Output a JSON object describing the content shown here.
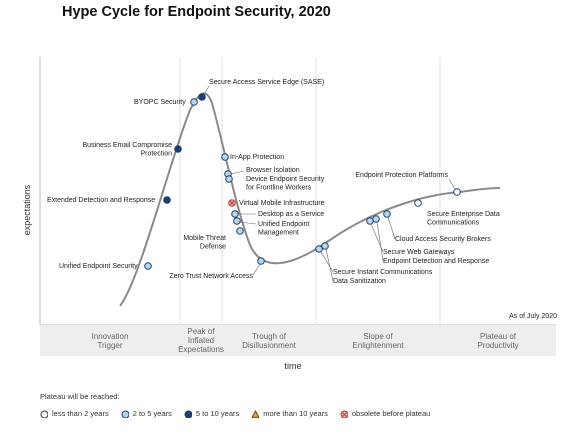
{
  "title": "Hype Cycle for Endpoint Security, 2020",
  "chart_data": {
    "type": "hype-cycle",
    "xlabel": "time",
    "ylabel": "expectations",
    "as_of": "As of July 2020",
    "phases": [
      "Innovation Trigger",
      "Peak of Inflated Expectations",
      "Trough of Disillusionment",
      "Slope of Enlightenment",
      "Plateau of Productivity"
    ],
    "technologies": [
      {
        "name": "Unified Endpoint Security",
        "plateau": "2-5"
      },
      {
        "name": "Extended Detection and Response",
        "plateau": "5-10"
      },
      {
        "name": "Business Email Compromise Protection",
        "plateau": "5-10"
      },
      {
        "name": "BYOPC Security",
        "plateau": "2-5"
      },
      {
        "name": "Secure Access Service Edge (SASE)",
        "plateau": "5-10"
      },
      {
        "name": "In-App Protection",
        "plateau": "2-5"
      },
      {
        "name": "Browser Isolation",
        "plateau": "2-5"
      },
      {
        "name": "Device Endpoint Security for Frontline Workers",
        "plateau": "2-5"
      },
      {
        "name": "Virtual Mobile Infrastructure",
        "plateau": "obsolete"
      },
      {
        "name": "Desktop as a Service",
        "plateau": "2-5"
      },
      {
        "name": "Unified Endpoint Management",
        "plateau": "2-5"
      },
      {
        "name": "Mobile Threat Defense",
        "plateau": "2-5"
      },
      {
        "name": "Zero Trust Network Access",
        "plateau": "2-5"
      },
      {
        "name": "Secure Instant Communications",
        "plateau": "2-5"
      },
      {
        "name": "Data Sanitization",
        "plateau": "2-5"
      },
      {
        "name": "Secure Web Gateways",
        "plateau": "2-5"
      },
      {
        "name": "Endpoint Detection and Response",
        "plateau": "2-5"
      },
      {
        "name": "Cloud Access Security Brokers",
        "plateau": "2-5"
      },
      {
        "name": "Secure Enterprise Data Communications",
        "plateau": "less-2"
      },
      {
        "name": "Endpoint Protection Platforms",
        "plateau": "less-2"
      }
    ]
  },
  "legend": {
    "title": "Plateau will be reached:",
    "items": [
      {
        "label": "less than 2 years",
        "type": "less-2"
      },
      {
        "label": "2 to 5 years",
        "type": "2-5"
      },
      {
        "label": "5 to 10 years",
        "type": "5-10"
      },
      {
        "label": "more than 10 years",
        "type": "more-10"
      },
      {
        "label": "obsolete before plateau",
        "type": "obsolete"
      }
    ]
  },
  "colors": {
    "less-2": "#ffffff",
    "2-5": "#b8d6ea",
    "5-10": "#1f3f73",
    "more-10": "#f2a900",
    "obsolete": "#e8b4b4",
    "curve": "#8a8a8a"
  }
}
